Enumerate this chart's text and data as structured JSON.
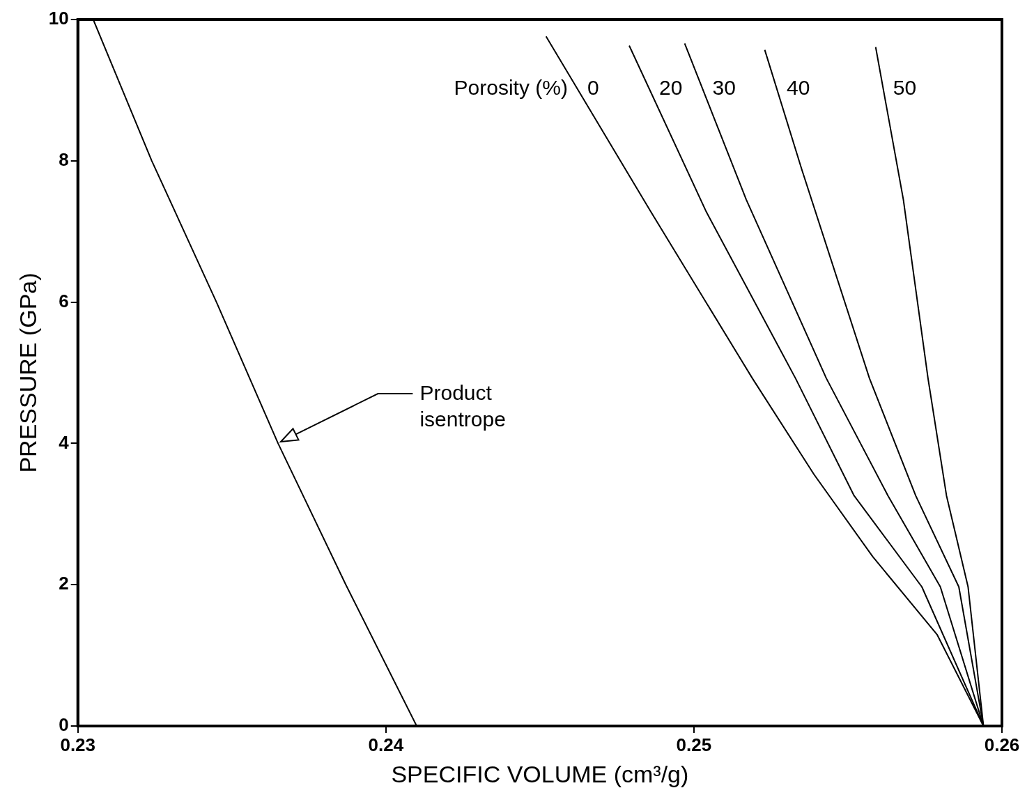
{
  "chart_data": {
    "type": "line",
    "xlabel": "SPECIFIC VOLUME (cm³/g)",
    "ylabel": "PRESSURE (GPa)",
    "legend_title": "Porosity (%)",
    "xlim": [
      0.23,
      0.26
    ],
    "xticks": [
      0.23,
      0.24,
      0.25,
      0.26
    ],
    "ylim": [
      0,
      10
    ],
    "yticks": [
      0,
      2,
      4,
      6,
      8,
      10
    ],
    "grid": false,
    "marker": "none",
    "line_style": "solid",
    "annotations": [
      "Product isentrope"
    ],
    "series": [
      {
        "color": "#000000",
        "x": [
          0.2305,
          0.2324,
          0.2345,
          0.2365,
          0.2387,
          0.241
        ],
        "values": [
          10,
          8,
          6,
          4,
          2,
          0
        ]
      },
      {
        "name": "0",
        "color": "#000000",
        "x": [
          0.2452,
          0.2486,
          0.2519,
          0.2539,
          0.2558,
          0.2579,
          0.2594
        ],
        "values": [
          9.76,
          7.28,
          4.92,
          3.56,
          2.4,
          1.29,
          0
        ]
      },
      {
        "name": "20",
        "color": "#000000",
        "x": [
          0.2479,
          0.2504,
          0.2533,
          0.2552,
          0.2574,
          0.2594
        ],
        "values": [
          9.63,
          7.28,
          4.92,
          3.26,
          1.97,
          0
        ]
      },
      {
        "name": "30",
        "color": "#000000",
        "x": [
          0.2497,
          0.2517,
          0.2543,
          0.2563,
          0.258,
          0.2594
        ],
        "values": [
          9.66,
          7.45,
          4.92,
          3.26,
          1.97,
          0
        ]
      },
      {
        "name": "40",
        "color": "#000000",
        "x": [
          0.2523,
          0.2535,
          0.2557,
          0.2572,
          0.2586,
          0.2594
        ],
        "values": [
          9.57,
          7.88,
          4.92,
          3.26,
          1.97,
          0
        ]
      },
      {
        "name": "50",
        "color": "#000000",
        "x": [
          0.2559,
          0.2568,
          0.2576,
          0.2582,
          0.2589,
          0.2594
        ],
        "values": [
          9.61,
          7.45,
          4.92,
          3.26,
          1.97,
          0
        ]
      }
    ]
  }
}
